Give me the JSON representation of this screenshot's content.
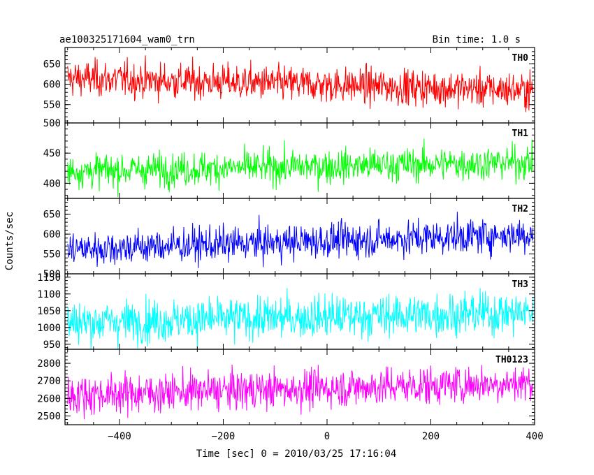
{
  "chart_data": {
    "type": "line",
    "title": "ae100325171604_wam0_trn",
    "bin_time_label": "Bin time: 1.0 s",
    "xlabel": "Time [sec] 0 = 2010/03/25 17:16:04",
    "ylabel": "Counts/sec",
    "xlim": [
      -505,
      400
    ],
    "x_ticks": [
      -400,
      -200,
      0,
      200,
      400
    ],
    "x_tick_labels": [
      "−400",
      "−200",
      "0",
      "200",
      "400"
    ],
    "x_range_data": [
      -500,
      397
    ],
    "grid": false,
    "panels": [
      {
        "name": "TH0",
        "color": "#ff0000",
        "ylim": [
          505,
          690
        ],
        "y_ticks": [
          550,
          600,
          650
        ],
        "mean_start": 615,
        "mean_end": 585,
        "noise": 22
      },
      {
        "name": "TH1",
        "color": "#00ff00",
        "ylim": [
          375,
          500
        ],
        "y_ticks": [
          400,
          450,
          500
        ],
        "mean_start": 420,
        "mean_end": 435,
        "noise": 14
      },
      {
        "name": "TH2",
        "color": "#0000ff",
        "ylim": [
          500,
          690
        ],
        "y_ticks": [
          500,
          550,
          600,
          650
        ],
        "mean_start": 562,
        "mean_end": 600,
        "noise": 22
      },
      {
        "name": "TH3",
        "color": "#00ffff",
        "ylim": [
          935,
          1160
        ],
        "y_ticks": [
          950,
          1000,
          1050,
          1100,
          1150
        ],
        "mean_start": 1015,
        "mean_end": 1045,
        "noise": 32
      },
      {
        "name": "TH0123",
        "color": "#ff00ff",
        "ylim": [
          2450,
          2880
        ],
        "y_ticks": [
          2500,
          2600,
          2700,
          2800
        ],
        "mean_start": 2620,
        "mean_end": 2690,
        "noise": 55
      }
    ]
  }
}
